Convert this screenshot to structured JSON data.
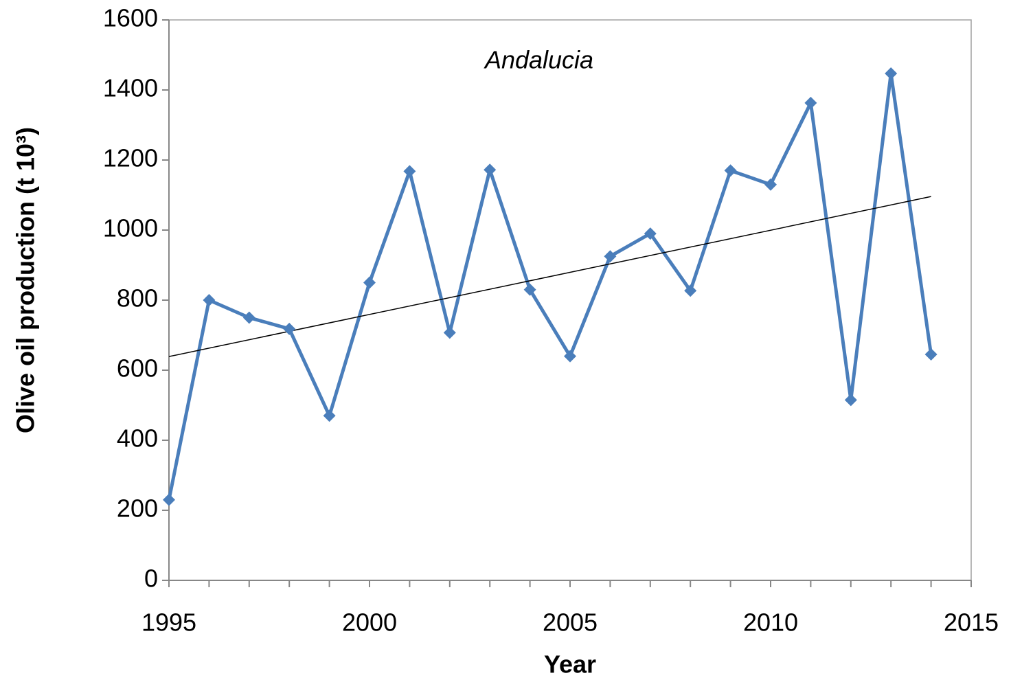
{
  "chart_data": {
    "type": "line",
    "annotation": "Andalucia",
    "x_label": "Year",
    "y_label": "Olive oil  production (t 10³)",
    "x": [
      1995,
      1996,
      1997,
      1998,
      1999,
      2000,
      2001,
      2002,
      2003,
      2004,
      2005,
      2006,
      2007,
      2008,
      2009,
      2010,
      2011,
      2012,
      2013,
      2014
    ],
    "series": [
      {
        "color": "#4a7ebb",
        "values": [
          230,
          800,
          750,
          718,
          470,
          850,
          1168,
          707,
          1172,
          830,
          640,
          925,
          990,
          827,
          1170,
          1130,
          1363,
          515,
          1447,
          645
        ]
      }
    ],
    "trendline": true,
    "xlim": [
      1995,
      2015
    ],
    "xticks": [
      1995,
      2000,
      2005,
      2010,
      2015
    ],
    "ylim": [
      0,
      1600
    ],
    "yticks": [
      0,
      200,
      400,
      600,
      800,
      1000,
      1200,
      1400,
      1600
    ]
  }
}
